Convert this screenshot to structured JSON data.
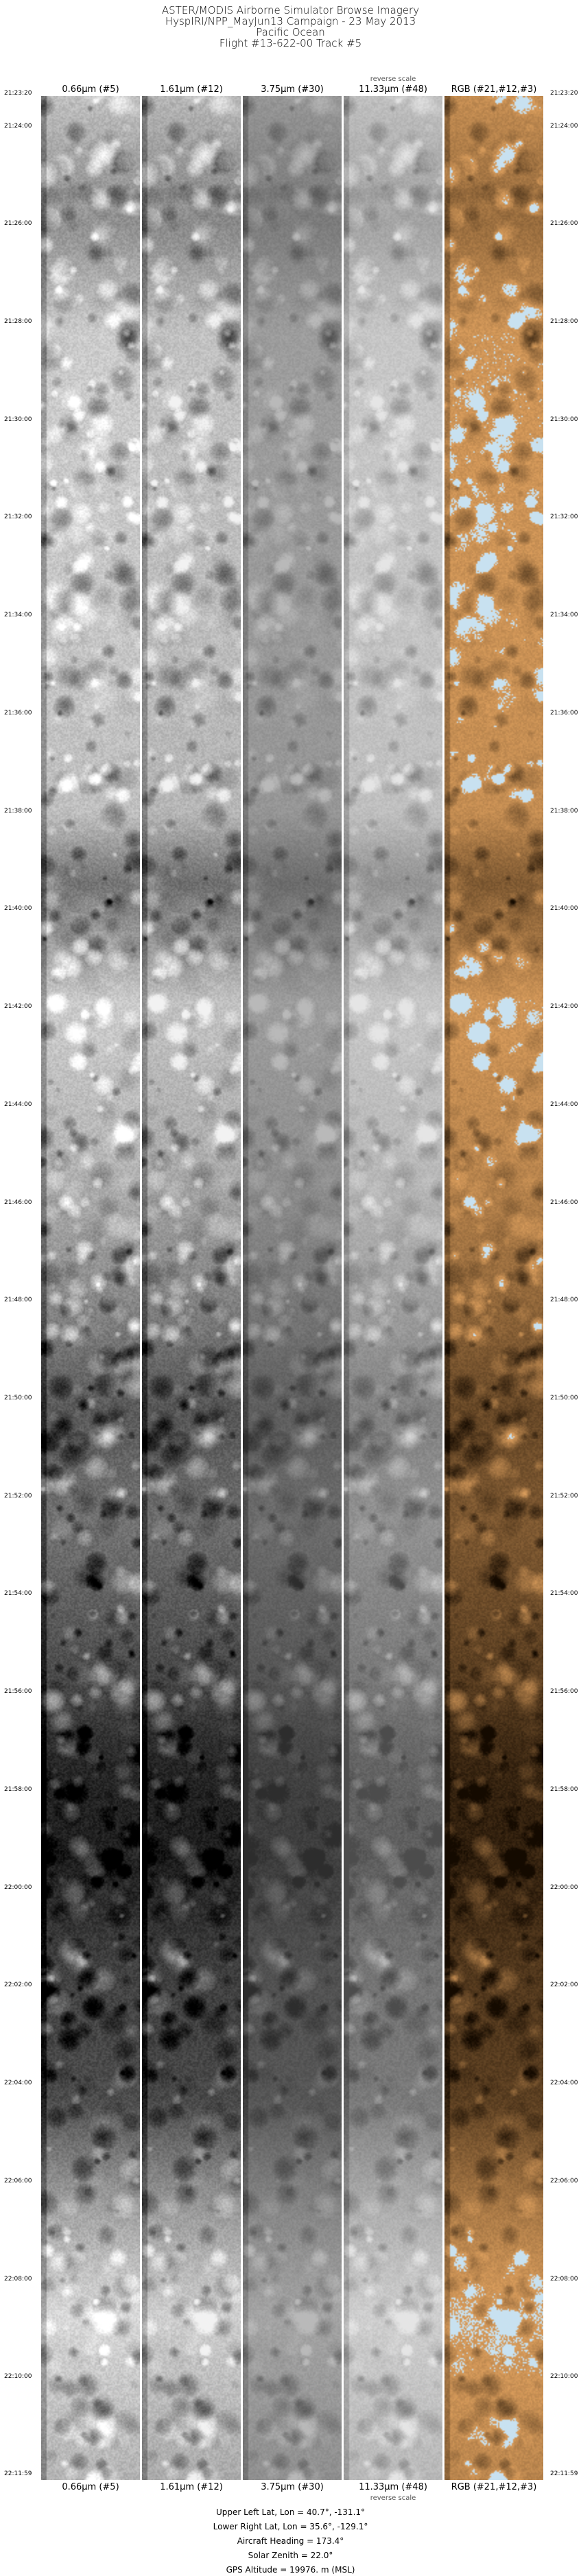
{
  "header": {
    "title_lines": [
      "ASTER/MODIS Airborne Simulator Browse Imagery",
      "HyspIRI/NPP_MayJun13 Campaign - 23 May 2013",
      "Pacific Ocean",
      "Flight #13-622-00 Track #5"
    ]
  },
  "columns": [
    {
      "label": "0.66µm (#5)",
      "kind": "visible"
    },
    {
      "label": "1.61µm (#12)",
      "kind": "swir"
    },
    {
      "label": "3.75µm (#30)",
      "kind": "mwir"
    },
    {
      "label": "11.33µm (#48)",
      "kind": "tir",
      "note": "reverse scale"
    },
    {
      "label": "RGB (#21,#12,#3)",
      "kind": "rgb"
    }
  ],
  "time_labels": [
    "21:23:20",
    "21:24:00",
    "21:26:00",
    "21:28:00",
    "21:30:00",
    "21:32:00",
    "21:34:00",
    "21:36:00",
    "21:38:00",
    "21:40:00",
    "21:42:00",
    "21:44:00",
    "21:46:00",
    "21:48:00",
    "21:50:00",
    "21:52:00",
    "21:54:00",
    "21:56:00",
    "21:58:00",
    "22:00:00",
    "22:02:00",
    "22:04:00",
    "22:06:00",
    "22:08:00",
    "22:10:00",
    "22:11:59"
  ],
  "info": {
    "upper_left": "Upper Left Lat, Lon =   40.7°, -131.1°",
    "lower_right": "Lower Right Lat, Lon =   35.6°, -129.1°",
    "heading": "Aircraft Heading =  173.4°",
    "solar_zenith": "Solar Zenith =   22.0°",
    "gps_altitude": "GPS Altitude =  19976. m (MSL)"
  },
  "colors": {
    "rgb_land_tone": "#b07a40",
    "rgb_cloud_tone": "#cfe6f5"
  }
}
